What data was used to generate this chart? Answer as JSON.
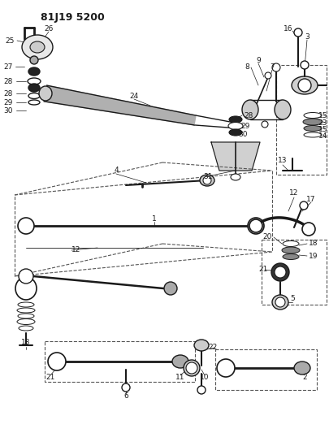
{
  "title": "81J19 5200",
  "bg_color": "#ffffff",
  "lc": "#1a1a1a",
  "dc": "#555555"
}
